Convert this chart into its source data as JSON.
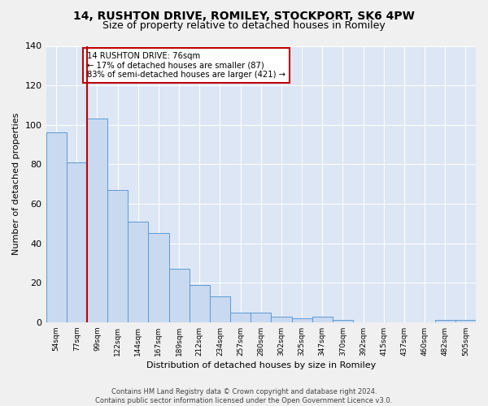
{
  "title1": "14, RUSHTON DRIVE, ROMILEY, STOCKPORT, SK6 4PW",
  "title2": "Size of property relative to detached houses in Romiley",
  "xlabel": "Distribution of detached houses by size in Romiley",
  "ylabel": "Number of detached properties",
  "categories": [
    "54sqm",
    "77sqm",
    "99sqm",
    "122sqm",
    "144sqm",
    "167sqm",
    "189sqm",
    "212sqm",
    "234sqm",
    "257sqm",
    "280sqm",
    "302sqm",
    "325sqm",
    "347sqm",
    "370sqm",
    "392sqm",
    "415sqm",
    "437sqm",
    "460sqm",
    "482sqm",
    "505sqm"
  ],
  "values": [
    96,
    81,
    103,
    67,
    51,
    45,
    27,
    19,
    13,
    5,
    5,
    3,
    2,
    3,
    1,
    0,
    0,
    0,
    0,
    1,
    1
  ],
  "bar_color": "#c9d9f0",
  "bar_edge_color": "#5b9bd5",
  "vline_color": "#c00000",
  "vline_pos": 1.5,
  "annotation_text": "14 RUSHTON DRIVE: 76sqm\n← 17% of detached houses are smaller (87)\n83% of semi-detached houses are larger (421) →",
  "annotation_box_color": "#ffffff",
  "annotation_box_edge": "#c00000",
  "footer": "Contains HM Land Registry data © Crown copyright and database right 2024.\nContains public sector information licensed under the Open Government Licence v3.0.",
  "ylim": [
    0,
    140
  ],
  "yticks": [
    0,
    20,
    40,
    60,
    80,
    100,
    120,
    140
  ],
  "background_color": "#dce6f5",
  "fig_background": "#f0f0f0",
  "title1_fontsize": 10,
  "title2_fontsize": 9,
  "footer_fontsize": 6,
  "ylabel_fontsize": 8,
  "xlabel_fontsize": 8
}
